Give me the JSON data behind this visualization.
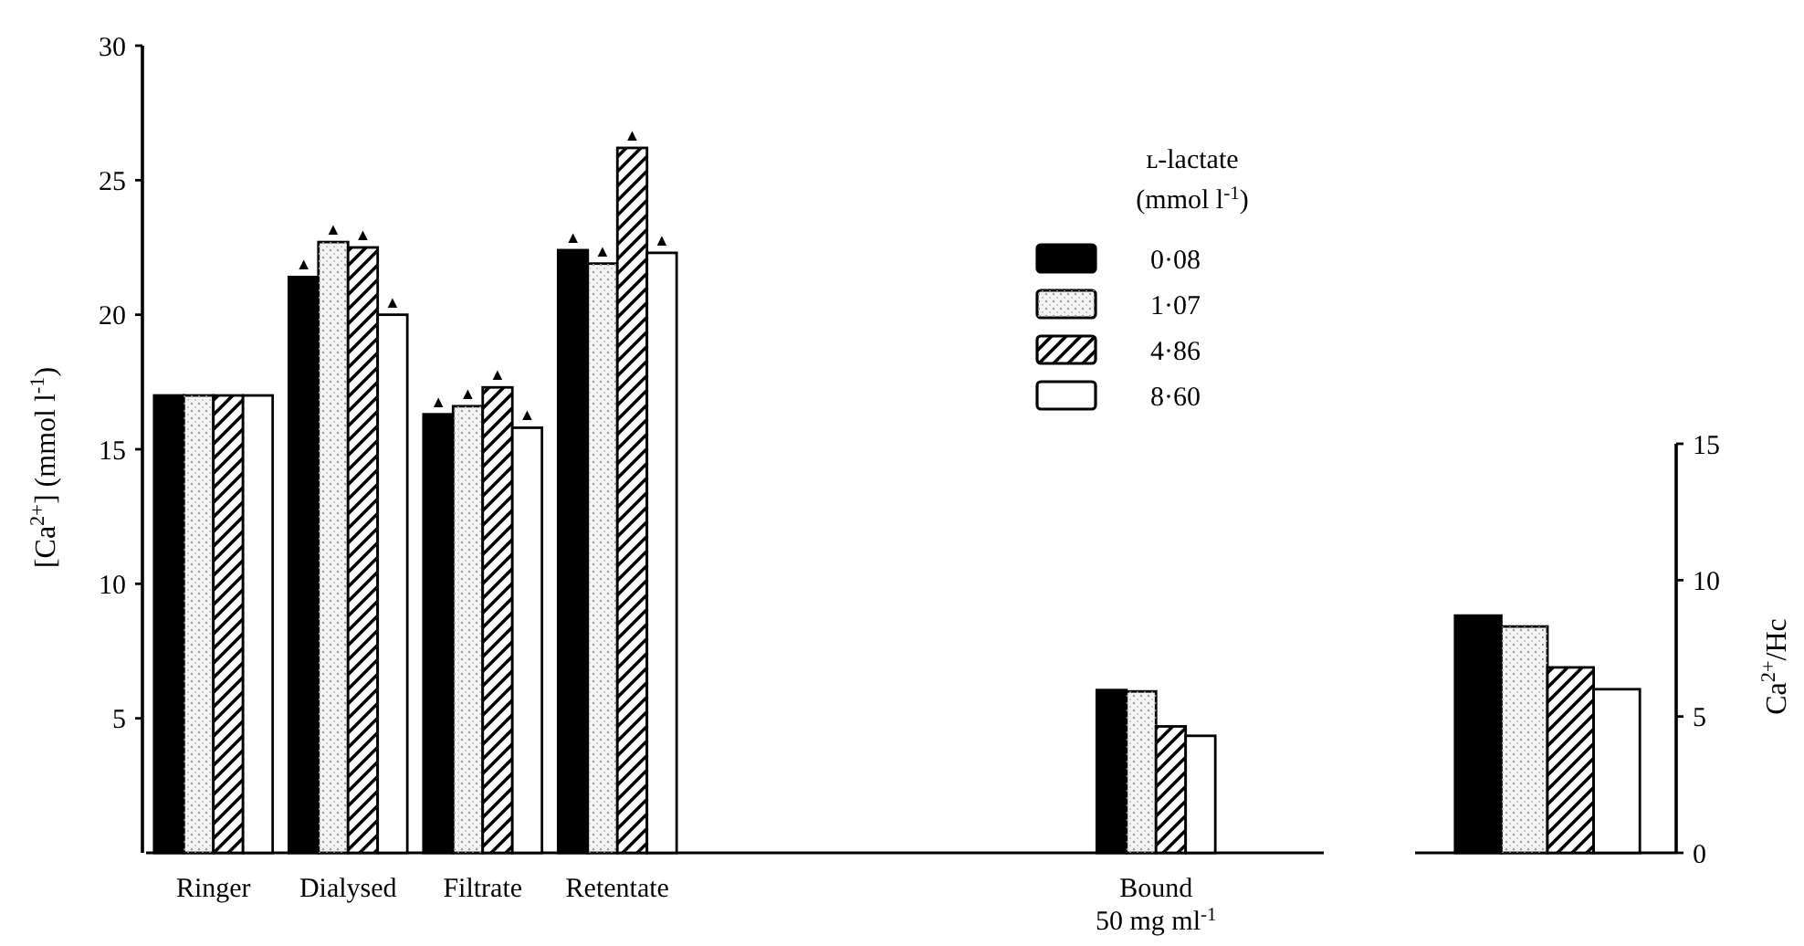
{
  "chart_data": [
    {
      "type": "bar",
      "ylabel": "[Ca$^{2+}$] (mmol l$^{-1}$)",
      "legend_title": "ʟ-lactate\n(mmol l$^{-1}$)",
      "legend": "top right",
      "categories": [
        "Ringer",
        "Dialysed",
        "Filtrate",
        "Retentate",
        null,
        null,
        null,
        "Bound\n50 mg ml$^{-1}$"
      ],
      "ylim": [
        0,
        30
      ],
      "yticks": [
        5,
        10,
        15,
        20,
        25,
        30
      ],
      "series": [
        {
          "name": "0·08",
          "color": "#000000",
          "values": [
            17.0,
            21.4,
            16.3,
            22.4,
            null,
            null,
            null,
            6.05
          ],
          "value_labels": [
            null,
            "▲",
            "▲",
            "▲",
            null,
            null,
            null,
            null
          ]
        },
        {
          "name": "1·07",
          "color": "#f4f4f4",
          "values": [
            17.0,
            22.7,
            16.6,
            21.9,
            null,
            null,
            null,
            6.0
          ],
          "value_labels": [
            null,
            "▲",
            "▲",
            "▲",
            null,
            null,
            null,
            null
          ]
        },
        {
          "name": "4·86",
          "color": "#fefefe",
          "values": [
            17.0,
            22.5,
            17.3,
            26.2,
            null,
            null,
            null,
            4.7
          ],
          "value_labels": [
            null,
            "▲",
            "▲",
            "▲",
            null,
            null,
            null,
            null
          ]
        },
        {
          "name": "8·60",
          "color": "#ffffff",
          "values": [
            17.0,
            20.0,
            15.8,
            22.3,
            null,
            null,
            null,
            4.35
          ],
          "value_labels": [
            null,
            "▲",
            "▲",
            "▲",
            null,
            null,
            null,
            null
          ]
        }
      ]
    },
    {
      "type": "bar",
      "ylabel": "Ca$^{2+}$/Hc",
      "categories": [
        null
      ],
      "ylim": [
        0,
        15
      ],
      "yticks": [
        0,
        5,
        10,
        15
      ],
      "series": [
        {
          "color": "#000000",
          "values": [
            8.7
          ]
        },
        {
          "color": "#f4f4f4",
          "values": [
            8.3
          ]
        },
        {
          "color": "#fefefe",
          "values": [
            6.8
          ]
        },
        {
          "color": "#ffffff",
          "values": [
            6.0
          ]
        }
      ]
    }
  ]
}
